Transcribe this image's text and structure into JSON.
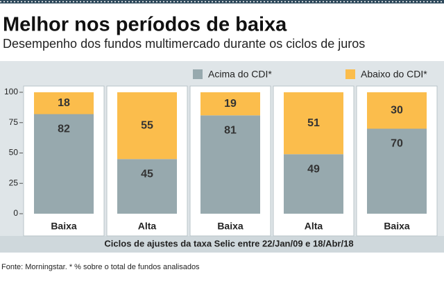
{
  "chart_data": {
    "type": "stacked_bar",
    "title": "Melhor nos períodos de baixa",
    "subtitle": "Desempenho dos fundos multimercado durante os ciclos de juros",
    "categories": [
      "Baixa",
      "Alta",
      "Baixa",
      "Alta",
      "Baixa"
    ],
    "series": [
      {
        "name": "Acima do CDI*",
        "color": "#97a9ae",
        "values": [
          82,
          45,
          81,
          49,
          70
        ]
      },
      {
        "name": "Abaixo do CDI*",
        "color": "#fbbd4c",
        "values": [
          18,
          55,
          19,
          51,
          30
        ]
      }
    ],
    "ylim": [
      0,
      100
    ],
    "yticks": [
      0,
      25,
      50,
      75,
      100
    ],
    "xlabel": "Ciclos de ajustes da taxa Selic entre  22/Jan/09 e 18/Abr/18",
    "note": "Fonte: Morningstar. * % sobre o total de fundos analisados"
  }
}
